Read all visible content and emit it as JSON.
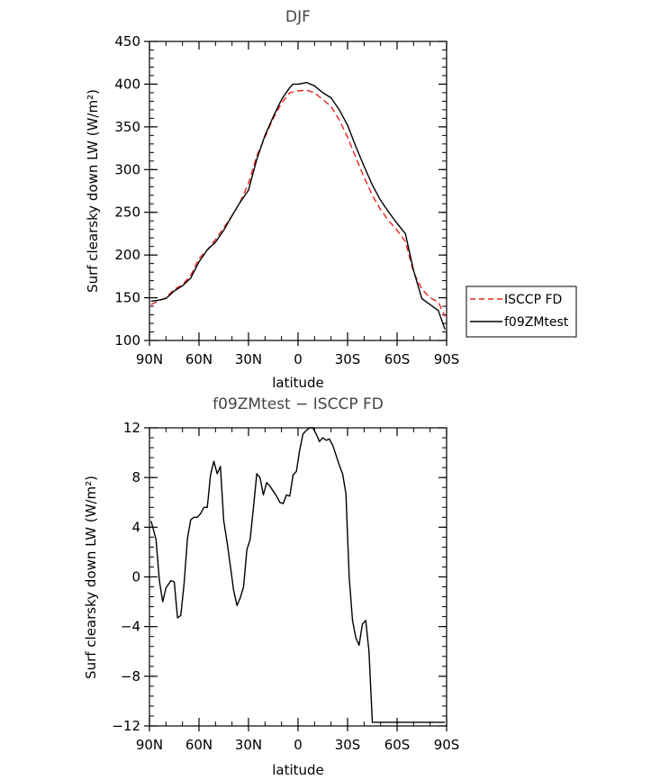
{
  "chart_data": [
    {
      "type": "line",
      "title": "DJF",
      "xlabel": "latitude",
      "ylabel": "Surf clearsky down LW (W/m²)",
      "xlim": [
        -90,
        90
      ],
      "ylim": [
        100,
        450
      ],
      "x_ticks": [
        -90,
        -60,
        -30,
        0,
        30,
        60,
        90
      ],
      "x_tick_labels": [
        "90N",
        "60N",
        "30N",
        "0",
        "30S",
        "60S",
        "90S"
      ],
      "y_ticks": [
        100,
        150,
        200,
        250,
        300,
        350,
        400,
        450
      ],
      "y_tick_labels": [
        "100",
        "150",
        "200",
        "250",
        "300",
        "350",
        "400",
        "450"
      ],
      "legend_placement": "right-bottom-outside",
      "series": [
        {
          "name": "ISCCP FD",
          "color": "#e8221d",
          "dash": "dashed",
          "x": [
            -89,
            -85,
            -80,
            -75,
            -70,
            -65,
            -60,
            -55,
            -50,
            -45,
            -40,
            -35,
            -30,
            -25,
            -20,
            -15,
            -10,
            -5,
            0,
            5,
            10,
            15,
            20,
            25,
            30,
            35,
            40,
            45,
            50,
            55,
            60,
            65,
            70,
            75,
            80,
            85,
            89
          ],
          "y": [
            142,
            146,
            150,
            160,
            165,
            176,
            196,
            206,
            218,
            232,
            246,
            262,
            284,
            316,
            338,
            360,
            378,
            390,
            392,
            393,
            390,
            382,
            374,
            358,
            338,
            314,
            291,
            270,
            253,
            240,
            229,
            216,
            180,
            160,
            150,
            145,
            128
          ]
        },
        {
          "name": "f09ZMtest",
          "color": "#000000",
          "dash": "solid",
          "x": [
            -89,
            -85,
            -80,
            -75,
            -70,
            -65,
            -60,
            -55,
            -50,
            -45,
            -40,
            -35,
            -30,
            -25,
            -20,
            -15,
            -10,
            -5,
            -3,
            0,
            3,
            5,
            10,
            15,
            20,
            25,
            30,
            35,
            40,
            45,
            50,
            55,
            60,
            65,
            70,
            75,
            80,
            85,
            89
          ],
          "y": [
            146,
            147,
            149,
            158,
            164,
            173,
            192,
            206,
            215,
            229,
            246,
            262,
            276,
            312,
            340,
            362,
            382,
            396,
            400,
            400,
            401,
            402,
            398,
            390,
            384,
            370,
            352,
            327,
            304,
            282,
            264,
            250,
            237,
            225,
            182,
            149,
            142,
            135,
            113
          ]
        }
      ]
    },
    {
      "type": "line",
      "title": "f09ZMtest − ISCCP FD",
      "xlabel": "latitude",
      "ylabel": "Surf clearsky down LW (W/m²)",
      "xlim": [
        -90,
        90
      ],
      "ylim": [
        -12,
        12
      ],
      "x_ticks": [
        -90,
        -60,
        -30,
        0,
        30,
        60,
        90
      ],
      "x_tick_labels": [
        "90N",
        "60N",
        "30N",
        "0",
        "30S",
        "60S",
        "90S"
      ],
      "y_ticks": [
        -12,
        -8,
        -4,
        0,
        4,
        8,
        12
      ],
      "y_tick_labels": [
        "−12",
        "−8",
        "−4",
        "0",
        "4",
        "8",
        "12"
      ],
      "series": [
        {
          "name": "",
          "color": "#000000",
          "dash": "solid",
          "x": [
            -89,
            -86,
            -84,
            -82,
            -80,
            -77,
            -75,
            -73,
            -71,
            -69,
            -67,
            -65,
            -63,
            -61,
            -59,
            -57,
            -55,
            -53,
            -51,
            -49,
            -47,
            -45,
            -43,
            -41,
            -39,
            -37,
            -35,
            -33,
            -31,
            -29,
            -27,
            -25,
            -23,
            -21,
            -19,
            -17,
            -15,
            -13,
            -11,
            -9,
            -7,
            -5,
            -3,
            -1,
            1,
            3,
            5,
            7,
            9,
            11,
            13,
            15,
            17,
            19,
            21,
            23,
            25,
            27,
            29,
            31,
            33,
            35,
            37,
            39,
            41,
            43,
            45,
            47,
            49,
            51,
            53,
            55,
            57,
            59,
            61,
            63,
            65,
            67,
            69,
            71,
            73,
            75,
            77,
            79,
            81,
            83,
            85,
            87,
            89
          ],
          "y": [
            4.5,
            3.0,
            -0.3,
            -2.0,
            -0.9,
            -0.3,
            -0.4,
            -3.3,
            -3.1,
            -0.5,
            3.1,
            4.6,
            4.8,
            4.8,
            5.1,
            5.6,
            5.6,
            8.2,
            9.3,
            8.3,
            8.9,
            4.5,
            2.8,
            0.9,
            -1.1,
            -2.3,
            -1.7,
            -0.8,
            2.2,
            3.0,
            5.6,
            8.3,
            8.0,
            6.6,
            7.6,
            7.3,
            6.9,
            6.5,
            6.0,
            5.9,
            6.6,
            6.5,
            8.2,
            8.5,
            10.2,
            11.5,
            11.8,
            12.0,
            12.0,
            11.5,
            10.9,
            11.2,
            11.0,
            11.1,
            10.6,
            9.8,
            9.0,
            8.3,
            6.7,
            0.0,
            -3.5,
            -4.9,
            -5.5,
            -3.8,
            -3.5,
            -6.0,
            -11.7,
            -11.7,
            -11.7,
            -11.7,
            -11.7,
            -11.7,
            -11.7,
            -11.7,
            -11.7,
            -11.7,
            -11.7,
            -11.7,
            -11.7,
            -11.7,
            -11.7,
            -11.7,
            -11.7,
            -11.7,
            -11.7,
            -11.7,
            -11.7,
            -11.7,
            -11.7
          ]
        }
      ]
    }
  ]
}
